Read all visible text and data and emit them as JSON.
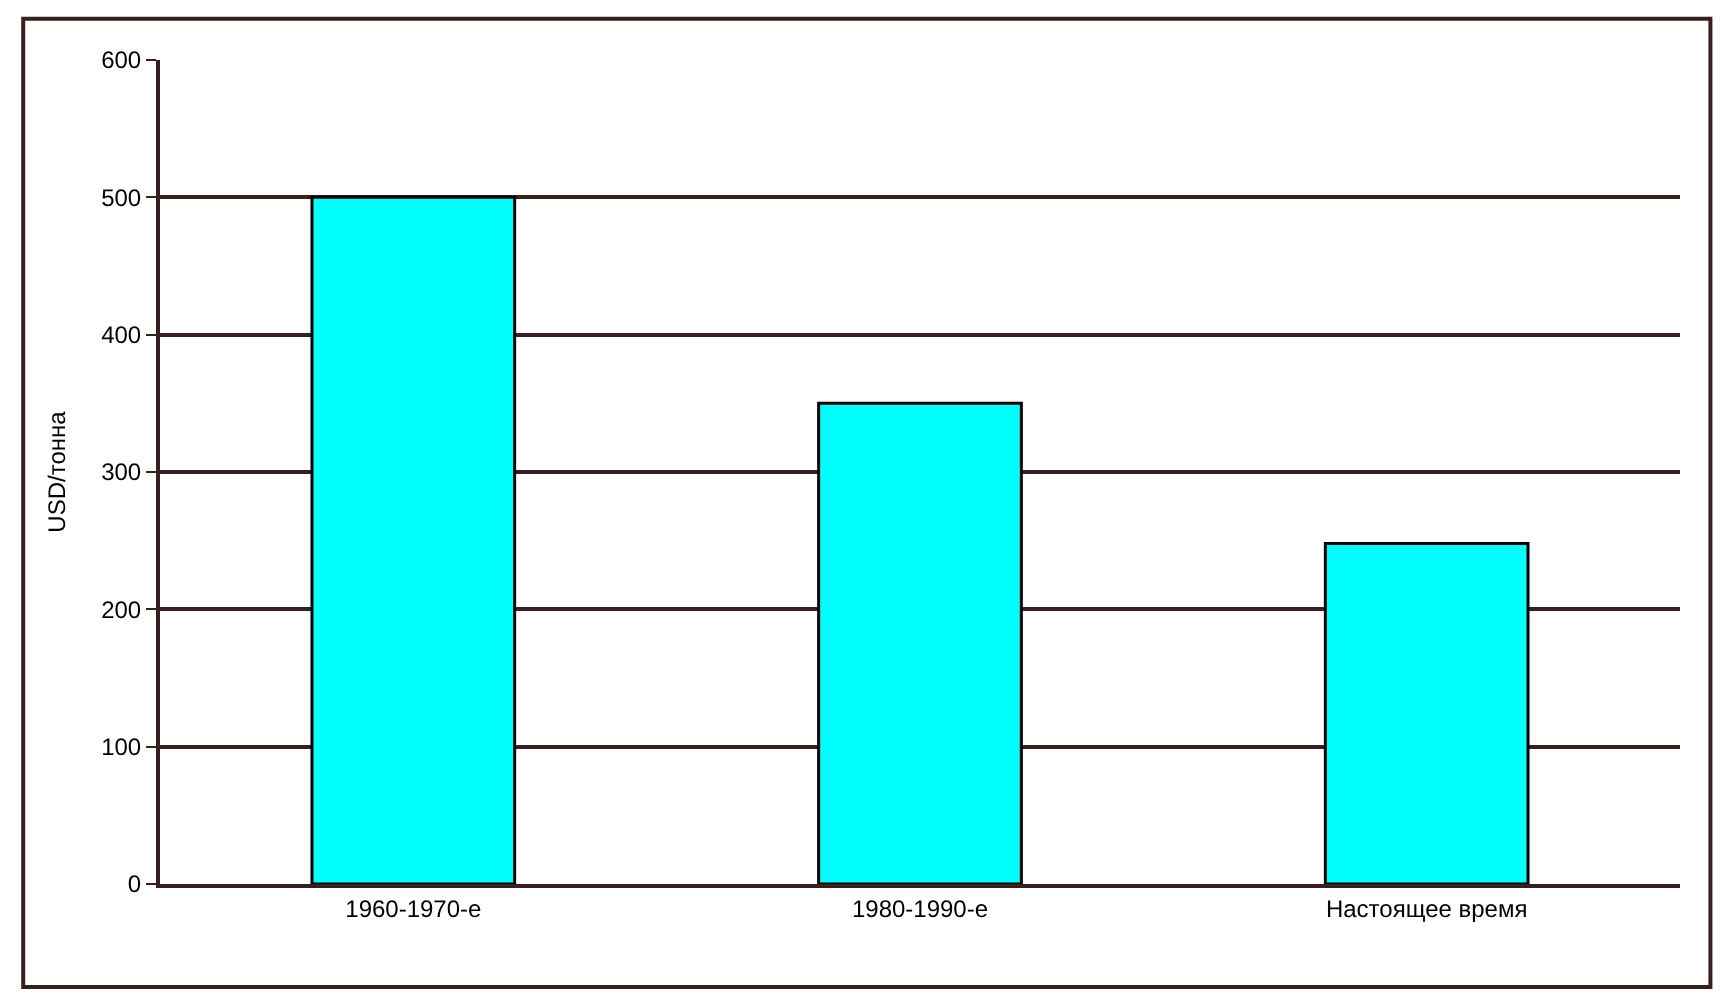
{
  "chart_data": {
    "type": "bar",
    "ylabel": "USD/тонна",
    "categories": [
      "1960-1970-е",
      "1980-1990-е",
      "Настоящее время"
    ],
    "values": [
      500,
      350,
      248
    ],
    "color": "#00ffff",
    "ylim": [
      0,
      600
    ],
    "yticks": [
      0,
      100,
      200,
      300,
      400,
      500,
      600
    ],
    "grid": "y"
  }
}
